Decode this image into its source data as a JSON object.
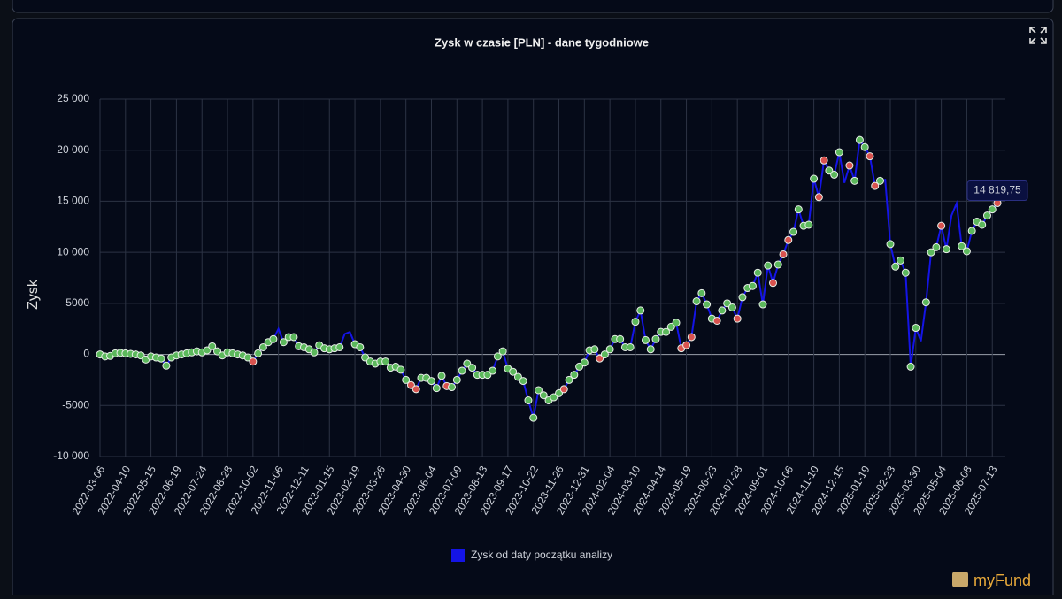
{
  "chart_data": {
    "type": "line",
    "title": "Zysk w czasie [PLN] - dane tygodniowe",
    "y_label": "Zysk",
    "categories": [
      "2022-03-06",
      null,
      null,
      null,
      null,
      "2022-04-10",
      null,
      null,
      null,
      null,
      "2022-05-15",
      null,
      null,
      null,
      null,
      "2022-06-19",
      null,
      null,
      null,
      null,
      "2022-07-24",
      null,
      null,
      null,
      null,
      "2022-08-28",
      null,
      null,
      null,
      null,
      "2022-10-02",
      null,
      null,
      null,
      null,
      "2022-11-06",
      null,
      null,
      null,
      null,
      "2022-12-11",
      null,
      null,
      null,
      null,
      "2023-01-15",
      null,
      null,
      null,
      null,
      "2023-02-19",
      null,
      null,
      null,
      null,
      "2023-03-26",
      null,
      null,
      null,
      null,
      "2023-04-30",
      null,
      null,
      null,
      null,
      "2023-06-04",
      null,
      null,
      null,
      null,
      "2023-07-09",
      null,
      null,
      null,
      null,
      "2023-08-13",
      null,
      null,
      null,
      null,
      "2023-09-17",
      null,
      null,
      null,
      null,
      "2023-10-22",
      null,
      null,
      null,
      null,
      "2023-11-26",
      null,
      null,
      null,
      null,
      "2023-12-31",
      null,
      null,
      null,
      null,
      "2024-02-04",
      null,
      null,
      null,
      null,
      "2024-03-10",
      null,
      null,
      null,
      null,
      "2024-04-14",
      null,
      null,
      null,
      null,
      "2024-05-19",
      null,
      null,
      null,
      null,
      "2024-06-23",
      null,
      null,
      null,
      null,
      "2024-07-28",
      null,
      null,
      null,
      null,
      "2024-09-01",
      null,
      null,
      null,
      null,
      "2024-10-06",
      null,
      null,
      null,
      null,
      "2024-11-10",
      null,
      null,
      null,
      null,
      "2024-12-15",
      null,
      null,
      null,
      null,
      "2025-01-19",
      null,
      null,
      null,
      null,
      "2025-02-23",
      null,
      null,
      null,
      null,
      "2025-03-30",
      null,
      null,
      null,
      null,
      "2025-05-04",
      null,
      null,
      null,
      null,
      "2025-06-08",
      null,
      null,
      null,
      null,
      "2025-07-13",
      null
    ],
    "series": [
      {
        "name": "Zysk od daty początku analizy",
        "color": "#1414e6",
        "values": [
          0,
          -200,
          -150,
          100,
          150,
          100,
          50,
          0,
          -100,
          -500,
          -200,
          -300,
          -400,
          -1100,
          -300,
          -100,
          0,
          100,
          200,
          300,
          200,
          400,
          800,
          300,
          -100,
          200,
          100,
          0,
          -100,
          -300,
          -700,
          100,
          700,
          1200,
          1500,
          2500,
          1200,
          1700,
          1700,
          800,
          700,
          500,
          200,
          900,
          600,
          500,
          600,
          700,
          2000,
          2200,
          1000,
          700,
          -300,
          -700,
          -900,
          -700,
          -700,
          -1300,
          -1200,
          -1500,
          -2500,
          -3000,
          -3400,
          -2300,
          -2300,
          -2600,
          -3300,
          -2100,
          -3100,
          -3200,
          -2500,
          -1600,
          -900,
          -1300,
          -2000,
          -2000,
          -2000,
          -1600,
          -200,
          300,
          -1400,
          -1700,
          -2200,
          -2600,
          -4500,
          -6200,
          -3500,
          -4000,
          -4500,
          -4200,
          -3800,
          -3400,
          -2500,
          -2000,
          -1200,
          -800,
          400,
          500,
          -400,
          0,
          500,
          1500,
          1500,
          700,
          700,
          3200,
          4300,
          1400,
          500,
          1500,
          2200,
          2200,
          2700,
          3100,
          600,
          900,
          1700,
          5200,
          6000,
          4900,
          3500,
          3300,
          4300,
          5000,
          4600,
          3500,
          5600,
          6500,
          6700,
          8000,
          4900,
          8700,
          7000,
          8800,
          9800,
          11200,
          12000,
          14200,
          12600,
          12700,
          17200,
          15400,
          19000,
          18000,
          17600,
          19800,
          16800,
          18500,
          17000,
          21000,
          20300,
          19400,
          16500,
          17000,
          17100,
          10800,
          8600,
          9200,
          8000,
          -1200,
          2600,
          1300,
          5100,
          10000,
          10500,
          12600,
          10300,
          13600,
          14800,
          10600,
          10100,
          12100,
          13000,
          12700,
          13600,
          14200,
          14819.75
        ],
        "marker_colors": [
          "#5cb85c",
          "#5cb85c",
          "#5cb85c",
          "#5cb85c",
          "#5cb85c",
          "#5cb85c",
          "#5cb85c",
          "#5cb85c",
          "#5cb85c",
          "#5cb85c",
          "#5cb85c",
          "#5cb85c",
          "#5cb85c",
          "#5cb85c",
          "#5cb85c",
          "#5cb85c",
          "#5cb85c",
          "#5cb85c",
          "#5cb85c",
          "#5cb85c",
          "#5cb85c",
          "#5cb85c",
          "#5cb85c",
          "#5cb85c",
          "#5cb85c",
          "#5cb85c",
          "#5cb85c",
          "#5cb85c",
          "#5cb85c",
          "#5cb85c",
          "#d9534f",
          "#5cb85c",
          "#5cb85c",
          "#5cb85c",
          "#5cb85c",
          null,
          "#5cb85c",
          "#5cb85c",
          "#5cb85c",
          "#5cb85c",
          "#5cb85c",
          "#5cb85c",
          "#5cb85c",
          "#5cb85c",
          "#5cb85c",
          "#5cb85c",
          "#5cb85c",
          "#5cb85c",
          null,
          null,
          "#5cb85c",
          "#5cb85c",
          "#5cb85c",
          "#5cb85c",
          "#5cb85c",
          "#5cb85c",
          "#5cb85c",
          "#5cb85c",
          "#5cb85c",
          "#5cb85c",
          "#5cb85c",
          "#d9534f",
          "#d9534f",
          "#5cb85c",
          "#5cb85c",
          "#5cb85c",
          "#5cb85c",
          "#5cb85c",
          "#d9534f",
          "#5cb85c",
          "#5cb85c",
          "#5cb85c",
          "#5cb85c",
          "#5cb85c",
          "#5cb85c",
          "#5cb85c",
          "#5cb85c",
          "#5cb85c",
          "#5cb85c",
          "#5cb85c",
          "#5cb85c",
          "#5cb85c",
          "#5cb85c",
          "#5cb85c",
          "#5cb85c",
          "#5cb85c",
          "#5cb85c",
          "#5cb85c",
          "#5cb85c",
          "#5cb85c",
          "#5cb85c",
          "#d9534f",
          "#5cb85c",
          "#5cb85c",
          "#5cb85c",
          "#5cb85c",
          "#5cb85c",
          "#5cb85c",
          "#d9534f",
          "#5cb85c",
          "#5cb85c",
          "#5cb85c",
          "#5cb85c",
          "#5cb85c",
          "#5cb85c",
          "#5cb85c",
          "#5cb85c",
          "#5cb85c",
          "#5cb85c",
          "#5cb85c",
          "#5cb85c",
          "#5cb85c",
          "#5cb85c",
          "#5cb85c",
          "#d9534f",
          "#d9534f",
          "#d9534f",
          "#5cb85c",
          "#5cb85c",
          "#5cb85c",
          "#5cb85c",
          "#d9534f",
          "#5cb85c",
          "#5cb85c",
          "#5cb85c",
          "#d9534f",
          "#5cb85c",
          "#5cb85c",
          "#5cb85c",
          "#5cb85c",
          "#5cb85c",
          "#5cb85c",
          "#d9534f",
          "#5cb85c",
          "#d9534f",
          "#d9534f",
          "#5cb85c",
          "#5cb85c",
          "#5cb85c",
          "#5cb85c",
          "#5cb85c",
          "#d9534f",
          "#d9534f",
          "#5cb85c",
          "#5cb85c",
          "#5cb85c",
          null,
          "#d9534f",
          "#5cb85c",
          "#5cb85c",
          "#5cb85c",
          "#d9534f",
          "#d9534f",
          "#5cb85c",
          null,
          "#5cb85c",
          "#5cb85c",
          "#5cb85c",
          "#5cb85c",
          "#5cb85c",
          "#5cb85c",
          null,
          "#5cb85c",
          "#5cb85c",
          "#5cb85c",
          "#d9534f",
          "#5cb85c",
          null,
          null,
          "#5cb85c",
          "#5cb85c",
          "#5cb85c",
          "#5cb85c",
          "#5cb85c",
          "#5cb85c",
          "#5cb85c",
          "#d9534f"
        ]
      }
    ],
    "tooltip": "14 819,75",
    "ylim": [
      -10000,
      25000
    ],
    "yticks": [
      {
        "value": -10000,
        "label": "-10 000"
      },
      -5000,
      0,
      5000,
      {
        "value": 10000,
        "label": "10 000"
      },
      {
        "value": 15000,
        "label": "15 000"
      },
      {
        "value": 20000,
        "label": "20 000"
      },
      {
        "value": 25000,
        "label": "25 000"
      }
    ],
    "grid": true,
    "legend": "bottom",
    "brand": "myFund"
  }
}
